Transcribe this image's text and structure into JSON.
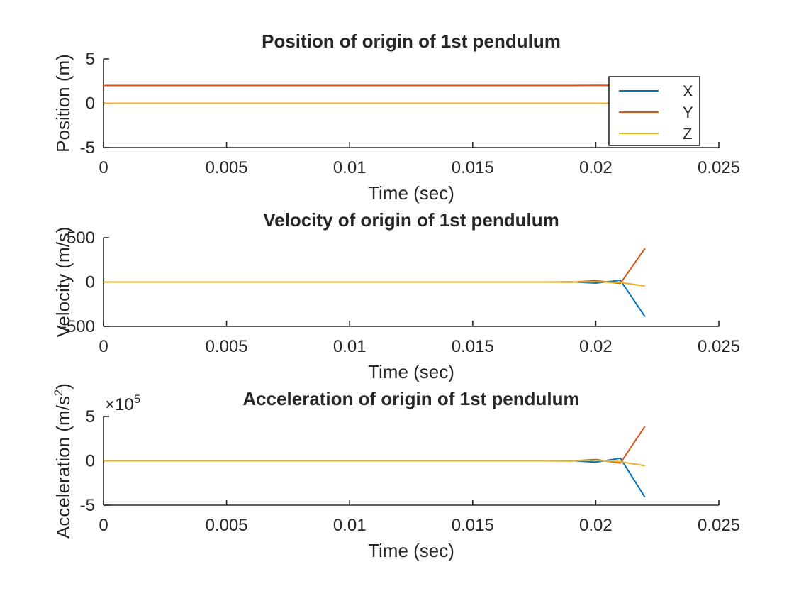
{
  "colors": {
    "X": "#0072BD",
    "Y": "#D95319",
    "Z": "#EDB120",
    "axis": "#262626"
  },
  "legend": {
    "entries": [
      "X",
      "Y",
      "Z"
    ],
    "placement": "top-right (first subplot)"
  },
  "chart_data": [
    {
      "type": "line",
      "title": "Position of origin of 1st pendulum",
      "xlabel": "Time (sec)",
      "ylabel": "Position (m)",
      "xlim": [
        0,
        0.025
      ],
      "ylim": [
        -5,
        5
      ],
      "xticks": [
        0,
        0.005,
        0.01,
        0.015,
        0.02,
        0.025
      ],
      "xtick_labels": [
        "0",
        "0.005",
        "0.01",
        "0.015",
        "0.02",
        "0.025"
      ],
      "yticks": [
        -5,
        0,
        5
      ],
      "ytick_labels": [
        "-5",
        "0",
        "5"
      ],
      "exponent_label": "",
      "x": [
        0,
        0.005,
        0.01,
        0.015,
        0.019,
        0.02,
        0.021,
        0.022
      ],
      "series": [
        {
          "name": "X",
          "values": [
            0,
            0,
            0,
            0,
            0,
            0,
            0,
            0
          ]
        },
        {
          "name": "Y",
          "values": [
            2,
            2,
            2,
            2,
            2,
            2.02,
            2.0,
            2.0
          ]
        },
        {
          "name": "Z",
          "values": [
            0,
            0,
            0,
            0,
            0,
            0,
            0,
            0
          ]
        }
      ],
      "grid": false,
      "legend": true
    },
    {
      "type": "line",
      "title": "Velocity of origin of 1st pendulum",
      "xlabel": "Time (sec)",
      "ylabel": "Velocity (m/s)",
      "xlim": [
        0,
        0.025
      ],
      "ylim": [
        -500,
        500
      ],
      "xticks": [
        0,
        0.005,
        0.01,
        0.015,
        0.02,
        0.025
      ],
      "xtick_labels": [
        "0",
        "0.005",
        "0.01",
        "0.015",
        "0.02",
        "0.025"
      ],
      "yticks": [
        -500,
        0,
        500
      ],
      "ytick_labels": [
        "-500",
        "0",
        "500"
      ],
      "exponent_label": "",
      "x": [
        0,
        0.005,
        0.01,
        0.015,
        0.018,
        0.019,
        0.02,
        0.021,
        0.022
      ],
      "series": [
        {
          "name": "X",
          "values": [
            0,
            0,
            0,
            0,
            0,
            2,
            -12,
            20,
            -390
          ]
        },
        {
          "name": "Y",
          "values": [
            0,
            0,
            0,
            0,
            0,
            -2,
            15,
            -15,
            380
          ]
        },
        {
          "name": "Z",
          "values": [
            0,
            0,
            0,
            0,
            0,
            0,
            3,
            -5,
            -45
          ]
        }
      ],
      "grid": false,
      "legend": false
    },
    {
      "type": "line",
      "title": "Acceleration of origin of 1st pendulum",
      "xlabel": "Time (sec)",
      "ylabel": "Acceleration (m/s^2)",
      "xlim": [
        0,
        0.025
      ],
      "ylim": [
        -5,
        5
      ],
      "xticks": [
        0,
        0.005,
        0.01,
        0.015,
        0.02,
        0.025
      ],
      "xtick_labels": [
        "0",
        "0.005",
        "0.01",
        "0.015",
        "0.02",
        "0.025"
      ],
      "yticks": [
        -5,
        0,
        5
      ],
      "ytick_labels": [
        "-5",
        "0",
        "5"
      ],
      "exponent_label": "×10",
      "exponent_power": "5",
      "x": [
        0,
        0.005,
        0.01,
        0.015,
        0.018,
        0.019,
        0.02,
        0.021,
        0.022
      ],
      "series": [
        {
          "name": "X",
          "values": [
            0,
            0,
            0,
            0,
            0,
            0.02,
            -0.15,
            0.3,
            -4.1
          ]
        },
        {
          "name": "Y",
          "values": [
            0,
            0,
            0,
            0,
            0,
            -0.02,
            0.15,
            -0.25,
            3.9
          ]
        },
        {
          "name": "Z",
          "values": [
            0,
            0,
            0,
            0,
            0,
            0,
            0.05,
            -0.1,
            -0.55
          ]
        }
      ],
      "grid": false,
      "legend": false
    }
  ]
}
